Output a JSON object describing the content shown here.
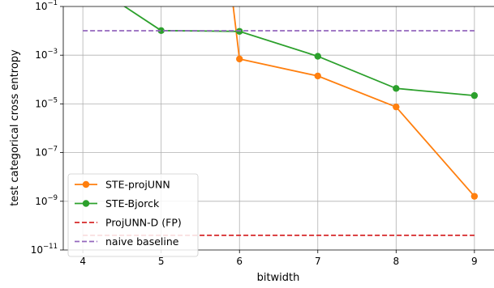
{
  "chart_data": {
    "type": "line",
    "xlabel": "bitwidth",
    "ylabel": "test categorical cross entropy",
    "xlim": [
      3.75,
      9.25
    ],
    "ylim": [
      1e-11,
      0.1
    ],
    "y_scale": "log",
    "grid": true,
    "x_ticks": [
      4,
      5,
      6,
      7,
      8,
      9
    ],
    "x_tick_labels": [
      "4",
      "5",
      "6",
      "7",
      "8",
      "9"
    ],
    "y_tick_exponents": [
      -1,
      -3,
      -5,
      -7,
      -9,
      -11
    ],
    "y_tick_base": "10",
    "legend_position": "lower-left",
    "series": [
      {
        "name": "STE-projUNN",
        "color": "#ff7f0e",
        "style": "solid",
        "marker": "circle",
        "points": [
          [
            5.88,
            1.0
          ],
          [
            5.92,
            0.1
          ],
          [
            6,
            0.0007
          ],
          [
            7,
            0.00014
          ],
          [
            8,
            7.5e-06
          ],
          [
            9,
            1.6e-09
          ]
        ],
        "markers_at": [
          6,
          7,
          8,
          9
        ]
      },
      {
        "name": "STE-Bjorck",
        "color": "#2ca02c",
        "style": "solid",
        "marker": "circle",
        "points": [
          [
            4.45,
            0.15
          ],
          [
            5,
            0.0102
          ],
          [
            6,
            0.0095
          ],
          [
            7,
            0.0009
          ],
          [
            8,
            4.3e-05
          ],
          [
            9,
            2.2e-05
          ]
        ],
        "markers_at": [
          5,
          6,
          7,
          8,
          9
        ]
      },
      {
        "name": "ProjUNN-D (FP)",
        "color": "#d62728",
        "style": "dashed",
        "marker": "none",
        "points": [
          [
            4,
            4e-11
          ],
          [
            9,
            4e-11
          ]
        ],
        "markers_at": []
      },
      {
        "name": "naive baseline",
        "color": "#9467bd",
        "style": "dashed",
        "marker": "none",
        "points": [
          [
            4,
            0.0101
          ],
          [
            9,
            0.0101
          ]
        ],
        "markers_at": []
      }
    ]
  }
}
